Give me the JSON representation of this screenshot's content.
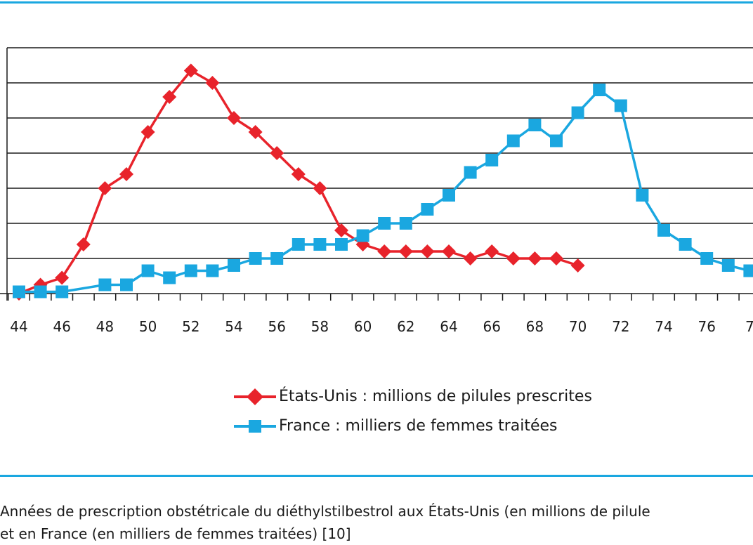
{
  "colors": {
    "accent_rule": "#1aa7e0",
    "us_series": "#e8232b",
    "france_series": "#1aa7e0",
    "grid": "#1a1a1a"
  },
  "chart_data": {
    "type": "line",
    "xlabel": "",
    "ylabel": "",
    "xlim": [
      43.5,
      77
    ],
    "ylim": [
      0,
      7
    ],
    "x_ticks": [
      "44",
      "46",
      "48",
      "50",
      "52",
      "54",
      "56",
      "58",
      "60",
      "62",
      "64",
      "66",
      "68",
      "70",
      "72",
      "74",
      "76",
      "7"
    ],
    "grid": "horizontal",
    "legend_position": "bottom",
    "series": [
      {
        "name": "États-Unis : millions de pilules prescrites",
        "marker": "diamond",
        "x": [
          44,
          45,
          46,
          47,
          48,
          49,
          50,
          51,
          52,
          53,
          54,
          55,
          56,
          57,
          58,
          59,
          60,
          61,
          62,
          63,
          64,
          65,
          66,
          67,
          68,
          69,
          70
        ],
        "y": [
          0.0,
          0.25,
          0.45,
          1.4,
          3.0,
          3.4,
          4.6,
          5.6,
          6.35,
          6.0,
          5.0,
          4.6,
          4.0,
          3.4,
          3.0,
          1.8,
          1.4,
          1.2,
          1.2,
          1.2,
          1.2,
          1.0,
          1.2,
          1.0,
          1.0,
          1.0,
          0.8
        ]
      },
      {
        "name": "France : milliers de femmes traitées",
        "marker": "square",
        "x": [
          44,
          45,
          46,
          48,
          49,
          50,
          51,
          52,
          53,
          54,
          55,
          56,
          57,
          58,
          59,
          60,
          61,
          62,
          63,
          64,
          65,
          66,
          67,
          68,
          69,
          70,
          71,
          72,
          73,
          74,
          75,
          76,
          77,
          78
        ],
        "y": [
          0.05,
          0.05,
          0.05,
          0.25,
          0.25,
          0.65,
          0.45,
          0.65,
          0.65,
          0.8,
          1.0,
          1.0,
          1.4,
          1.4,
          1.4,
          1.65,
          2.0,
          2.0,
          2.4,
          2.8,
          3.45,
          3.8,
          4.35,
          4.8,
          4.35,
          5.15,
          5.8,
          5.35,
          2.8,
          1.8,
          1.4,
          1.0,
          0.8,
          0.65
        ]
      }
    ]
  },
  "legend": {
    "us_label": "États-Unis : millions de pilules prescrites",
    "france_label": "France : milliers de femmes traitées"
  },
  "caption": {
    "line1": "Années de prescription obstétricale du diéthylstilbestrol aux États-Unis (en millions de pilule",
    "line2": "et en France (en milliers de femmes traitées) [10]"
  }
}
